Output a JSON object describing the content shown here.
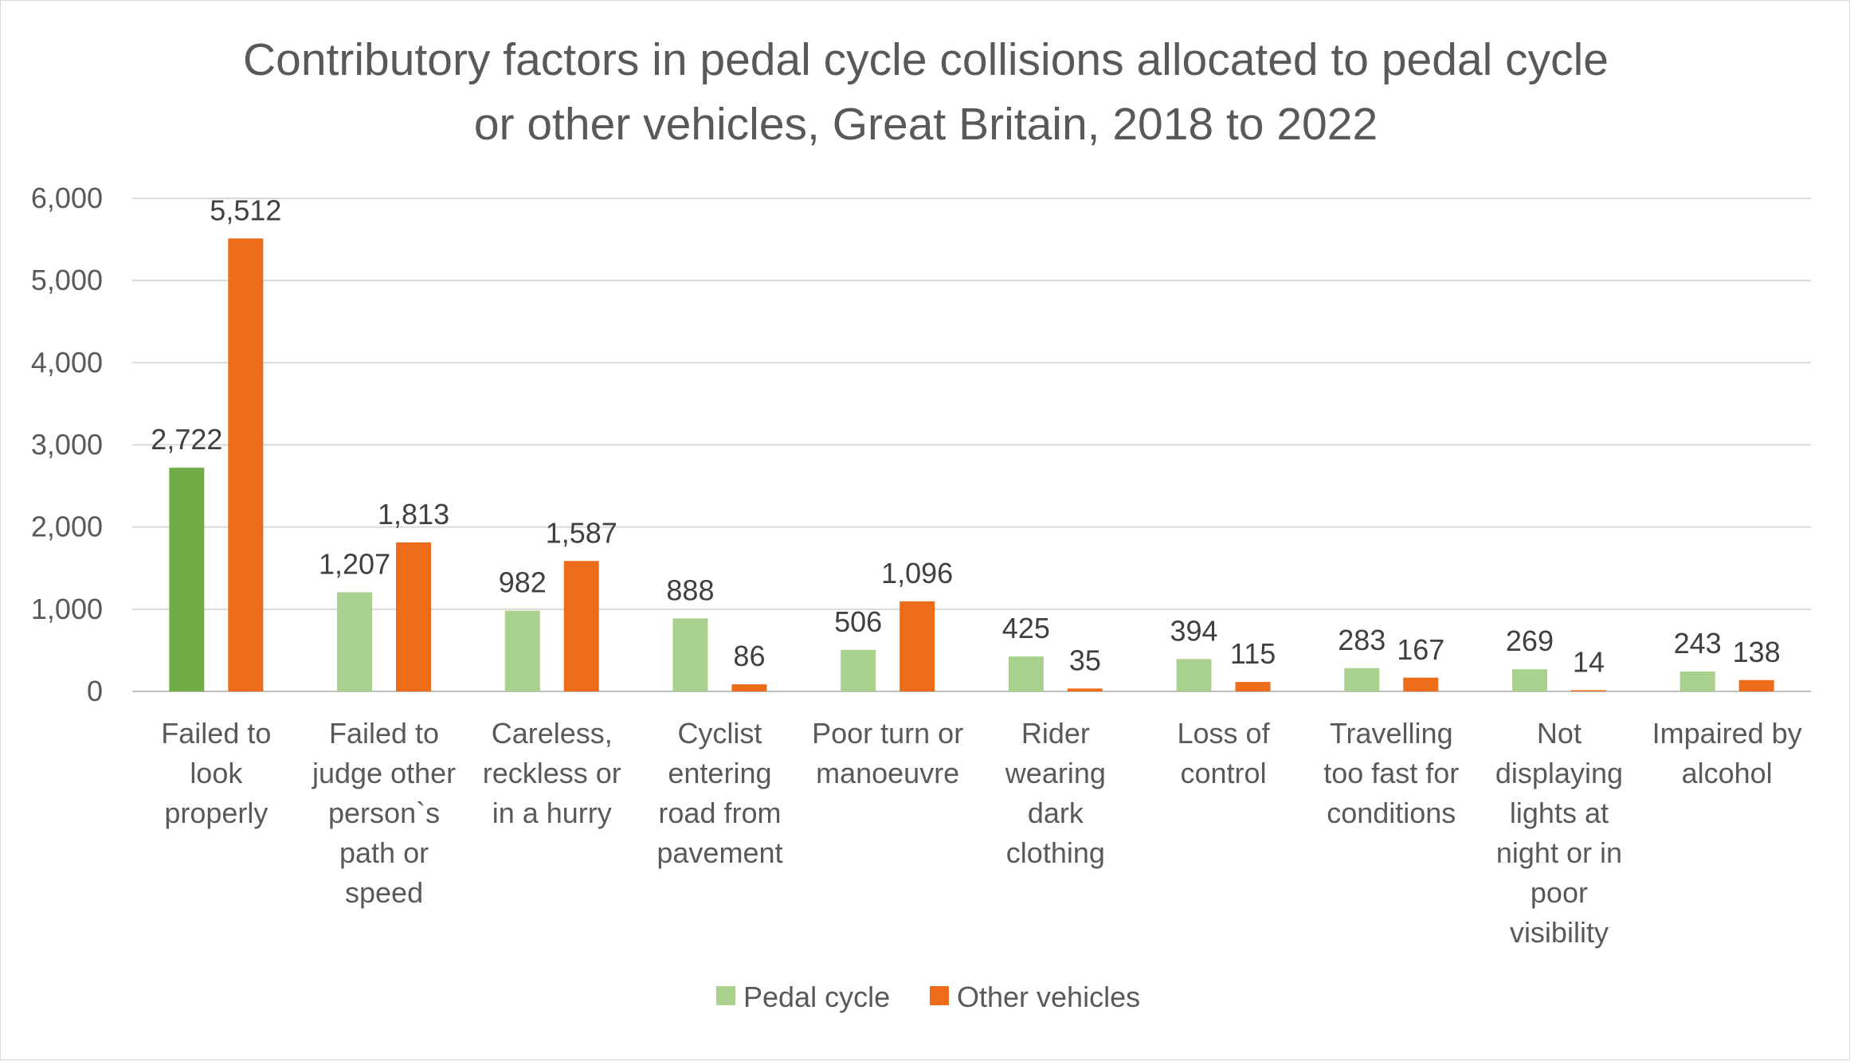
{
  "chart_data": {
    "type": "bar",
    "title_lines": [
      "Contributory factors in pedal cycle collisions allocated to pedal cycle",
      "or other vehicles, Great Britain, 2018 to 2022"
    ],
    "categories": [
      [
        "Failed to",
        "look",
        "properly"
      ],
      [
        "Failed to",
        "judge other",
        "person`s",
        "path or",
        "speed"
      ],
      [
        "Careless,",
        "reckless or",
        "in a hurry"
      ],
      [
        "Cyclist",
        "entering",
        "road from",
        "pavement"
      ],
      [
        "Poor turn or",
        "manoeuvre"
      ],
      [
        "Rider",
        "wearing",
        "dark",
        "clothing"
      ],
      [
        "Loss of",
        "control"
      ],
      [
        "Travelling",
        "too fast for",
        "conditions"
      ],
      [
        "Not",
        "displaying",
        "lights at",
        "night or in",
        "poor",
        "visibility"
      ],
      [
        "Impaired by",
        "alcohol"
      ]
    ],
    "series": [
      {
        "name": "Pedal cycle",
        "color": "#a9d18e",
        "highlight_color": "#70ad47",
        "values": [
          2722,
          1207,
          982,
          888,
          506,
          425,
          394,
          283,
          269,
          243
        ],
        "labels": [
          "2,722",
          "1,207",
          "982",
          "888",
          "506",
          "425",
          "394",
          "283",
          "269",
          "243"
        ]
      },
      {
        "name": "Other vehicles",
        "color": "#ed6c1a",
        "values": [
          5512,
          1813,
          1587,
          86,
          1096,
          35,
          115,
          167,
          14,
          138
        ],
        "labels": [
          "5,512",
          "1,813",
          "1,587",
          "86",
          "1,096",
          "35",
          "115",
          "167",
          "14",
          "138"
        ]
      }
    ],
    "y_ticks": [
      0,
      1000,
      2000,
      3000,
      4000,
      5000,
      6000
    ],
    "y_tick_labels": [
      "0",
      "1,000",
      "2,000",
      "3,000",
      "4,000",
      "5,000",
      "6,000"
    ],
    "ylim": [
      0,
      6000
    ],
    "grid": true,
    "legend": "bottom-center",
    "colors": {
      "gridline": "#d9d9d9",
      "axis": "#bfbfbf"
    }
  }
}
